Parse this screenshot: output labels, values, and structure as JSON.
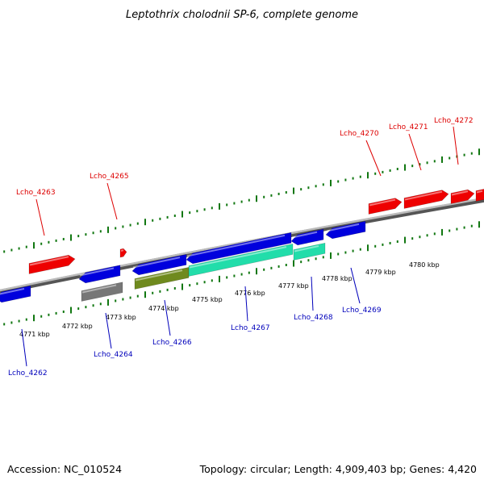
{
  "title": "Leptothrix cholodnii SP-6, complete genome",
  "footer": {
    "accession": "Accession: NC_010524",
    "summary": "Topology: circular; Length: 4,909,403 bp; Genes: 4,420"
  },
  "colors": {
    "forward_gene": "#ee0000",
    "reverse_gene": "#0000dd",
    "cds_gray": "#777777",
    "cds_olive": "#6f8a1e",
    "cds_aqua": "#22ddaa",
    "backbone": "#999999",
    "tick": "#117711",
    "label_forward": "#dd0000",
    "label_reverse": "#0000bb"
  },
  "kbp_labels": [
    "4771 kbp",
    "4772 kbp",
    "4773 kbp",
    "4774 kbp",
    "4775 kbp",
    "4776 kbp",
    "4777 kbp",
    "4778 kbp",
    "4779 kbp",
    "4780 kbp"
  ],
  "forward_labels": [
    "Lcho_4263",
    "Lcho_4265",
    "Lcho_4270",
    "Lcho_4271",
    "Lcho_4272"
  ],
  "reverse_labels": [
    "Lcho_4262",
    "Lcho_4264",
    "Lcho_4266",
    "Lcho_4267",
    "Lcho_4268",
    "Lcho_4269"
  ]
}
